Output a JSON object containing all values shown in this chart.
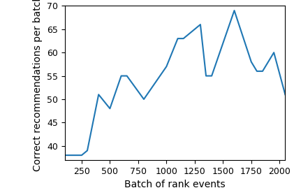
{
  "x": [
    100,
    250,
    300,
    400,
    500,
    600,
    650,
    800,
    1000,
    1100,
    1150,
    1300,
    1350,
    1400,
    1600,
    1750,
    1800,
    1850,
    1950,
    2050
  ],
  "y": [
    38,
    38,
    39,
    51,
    48,
    55,
    55,
    50,
    57,
    63,
    63,
    66,
    55,
    55,
    69,
    58,
    56,
    56,
    60,
    51
  ],
  "line_color": "#1f77b4",
  "xlabel": "Batch of rank events",
  "ylabel": "Correct recommendations per batch",
  "xlim": [
    100,
    2050
  ],
  "ylim": [
    37,
    70
  ],
  "xticks": [
    250,
    500,
    750,
    1000,
    1250,
    1500,
    1750,
    2000
  ],
  "yticks": [
    40,
    45,
    50,
    55,
    60,
    65,
    70
  ],
  "linewidth": 1.5,
  "tick_labelsize": 9,
  "label_fontsize": 10
}
